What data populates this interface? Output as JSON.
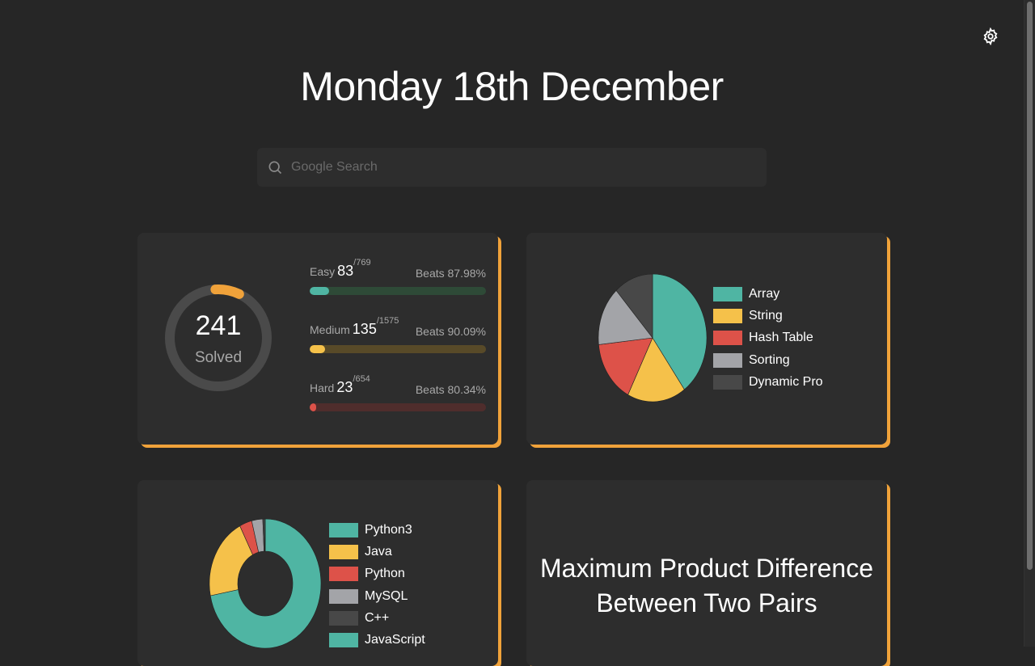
{
  "header": {
    "title": "Monday 18th December",
    "settings_icon": "gear-icon"
  },
  "search": {
    "placeholder": "Google Search",
    "value": "",
    "icon": "search-icon"
  },
  "colors": {
    "accent": "#f0a23a",
    "easy": "#4fb5a3",
    "medium": "#f5c14a",
    "hard": "#dd5249"
  },
  "stats": {
    "solved": 241,
    "solved_label": "Solved",
    "rows": [
      {
        "label": "Easy",
        "solved": "83",
        "total": "/769",
        "beats": "Beats 87.98%",
        "color": "#4fb5a3",
        "track": "#2e4a37"
      },
      {
        "label": "Medium",
        "solved": "135",
        "total": "/1575",
        "beats": "Beats 90.09%",
        "color": "#f5c14a",
        "track": "#584a28"
      },
      {
        "label": "Hard",
        "solved": "23",
        "total": "/654",
        "beats": "Beats 80.34%",
        "color": "#dd5249",
        "track": "#4f2d2c"
      }
    ]
  },
  "chart_data": [
    {
      "type": "pie",
      "labels": [
        "Array",
        "String",
        "Hash Table",
        "Sorting",
        "Dynamic Pro"
      ],
      "values": [
        40,
        17.5,
        15.8,
        15,
        11.7
      ],
      "colors": [
        "#4fb5a3",
        "#f5c14a",
        "#dd5249",
        "#a3a4a8",
        "#484848"
      ],
      "legend": "right"
    },
    {
      "type": "pie",
      "donut": true,
      "labels": [
        "Python3",
        "Java",
        "Python",
        "MySQL",
        "C++",
        "JavaScript"
      ],
      "values": [
        72,
        20.5,
        3.6,
        3.2,
        0.5,
        0.2
      ],
      "colors": [
        "#4fb5a3",
        "#f5c14a",
        "#dd5249",
        "#a3a4a8",
        "#484848",
        "#4fb5a3"
      ],
      "legend": "right"
    }
  ],
  "daily_question": {
    "title": "Maximum Product Difference Between Two Pairs"
  }
}
